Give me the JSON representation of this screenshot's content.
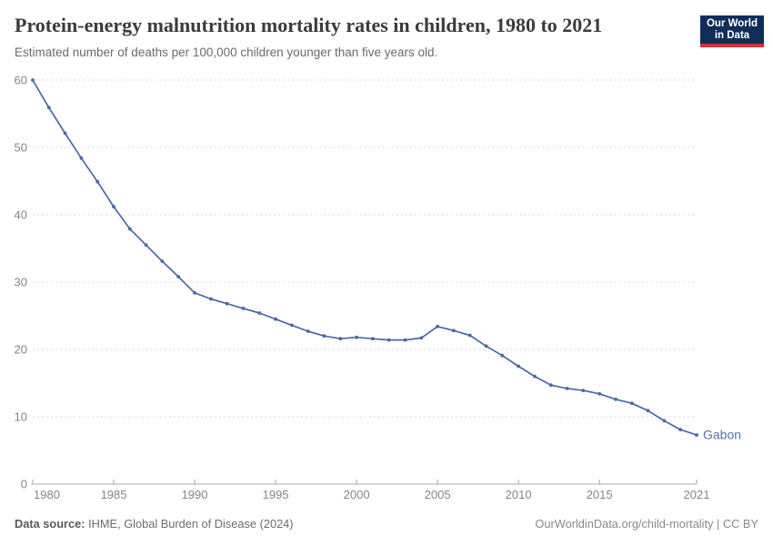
{
  "header": {
    "title": "Protein-energy malnutrition mortality rates in children, 1980 to 2021",
    "subtitle": "Estimated number of deaths per 100,000 children younger than five years old.",
    "logo_line1": "Our World",
    "logo_line2": "in Data"
  },
  "footer": {
    "source_label": "Data source:",
    "source_text": " IHME, Global Burden of Disease (2024)",
    "link_text": "OurWorldinData.org/child-mortality | CC BY"
  },
  "colors": {
    "line": "#4a68a5",
    "entity_label": "#5372aa",
    "logo_bg": "#102d5a",
    "logo_accent": "#d0313d",
    "gridline": "#dcdcdc",
    "axis": "#a8a8a8",
    "axis_text": "#858585"
  },
  "chart_data": {
    "type": "line",
    "title": "Protein-energy malnutrition mortality rates in children, 1980 to 2021",
    "subtitle": "Estimated number of deaths per 100,000 children younger than five years old.",
    "xlabel": "",
    "ylabel": "",
    "xlim": [
      1980,
      2021
    ],
    "ylim": [
      0,
      60
    ],
    "yticks": [
      0,
      10,
      20,
      30,
      40,
      50,
      60
    ],
    "xticks": [
      1980,
      1985,
      1990,
      1995,
      2000,
      2005,
      2010,
      2015,
      2021
    ],
    "grid": "horizontal-dashed",
    "legend": "end-of-line-label",
    "end_label": "Gabon",
    "x": [
      1980,
      1981,
      1982,
      1983,
      1984,
      1985,
      1986,
      1987,
      1988,
      1989,
      1990,
      1991,
      1992,
      1993,
      1994,
      1995,
      1996,
      1997,
      1998,
      1999,
      2000,
      2001,
      2002,
      2003,
      2004,
      2005,
      2006,
      2007,
      2008,
      2009,
      2010,
      2011,
      2012,
      2013,
      2014,
      2015,
      2016,
      2017,
      2018,
      2019,
      2020,
      2021
    ],
    "series": [
      {
        "name": "Gabon",
        "color": "#4a68a5",
        "values": [
          60.0,
          55.9,
          52.1,
          48.4,
          44.9,
          41.2,
          37.9,
          35.5,
          33.1,
          30.8,
          28.4,
          27.5,
          26.8,
          26.1,
          25.4,
          24.5,
          23.6,
          22.7,
          22.0,
          21.6,
          21.8,
          21.6,
          21.4,
          21.4,
          21.7,
          23.4,
          22.8,
          22.1,
          20.5,
          19.1,
          17.5,
          16.0,
          14.7,
          14.2,
          13.9,
          13.4,
          12.6,
          12.0,
          10.9,
          9.4,
          8.1,
          7.3
        ]
      }
    ]
  }
}
